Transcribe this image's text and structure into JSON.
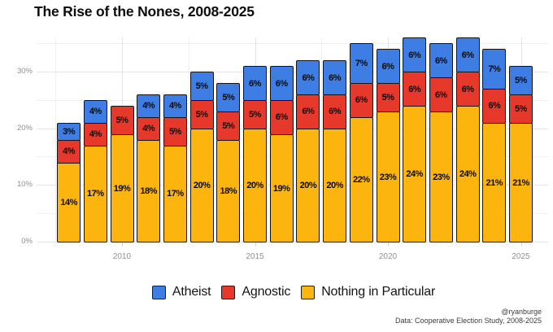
{
  "title": "The Rise of the Nones, 2008-2025",
  "caption": {
    "handle": "@ryanburge",
    "source": "Data: Cooperative Election Study, 2008-2025"
  },
  "legend": {
    "items": [
      {
        "label": "Atheist",
        "color": "#3E7DE4"
      },
      {
        "label": "Agnostic",
        "color": "#E6392C"
      },
      {
        "label": "Nothing in Particular",
        "color": "#FCB40F"
      }
    ]
  },
  "chart_data": {
    "type": "bar",
    "stacked": true,
    "title": "The Rise of the Nones, 2008-2025",
    "categories": [
      2008,
      2009,
      2010,
      2011,
      2012,
      2013,
      2014,
      2015,
      2016,
      2017,
      2018,
      2019,
      2020,
      2021,
      2022,
      2023,
      2024,
      2025
    ],
    "series": [
      {
        "name": "Nothing in Particular",
        "color": "#FCB40F",
        "values": [
          14,
          17,
          19,
          18,
          17,
          20,
          18,
          20,
          19,
          20,
          20,
          22,
          23,
          24,
          23,
          24,
          21,
          21
        ]
      },
      {
        "name": "Agnostic",
        "color": "#E6392C",
        "values": [
          4,
          4,
          5,
          4,
          5,
          5,
          5,
          5,
          6,
          6,
          6,
          6,
          5,
          6,
          6,
          6,
          6,
          5
        ]
      },
      {
        "name": "Atheist",
        "color": "#3E7DE4",
        "values": [
          3,
          4,
          null,
          4,
          4,
          5,
          5,
          6,
          6,
          6,
          6,
          7,
          6,
          6,
          6,
          6,
          7,
          5
        ]
      }
    ],
    "label_suffix": "%",
    "xlabel": "",
    "ylabel": "",
    "ylim": [
      0,
      37
    ],
    "y_ticks": [
      {
        "value": 0,
        "label": "0%"
      },
      {
        "value": 10,
        "label": "10%"
      },
      {
        "value": 20,
        "label": "20%"
      },
      {
        "value": 30,
        "label": "30%"
      }
    ],
    "y_minor_ticks": [
      5,
      15,
      25,
      35
    ],
    "x_ticks": [
      2010,
      2015,
      2020,
      2025
    ],
    "x_minor_ticks": [
      2007.5,
      2012.5,
      2017.5,
      2022.5
    ],
    "grid": "major+minor horizontal and vertical, light gray",
    "legend_position": "bottom-center"
  }
}
